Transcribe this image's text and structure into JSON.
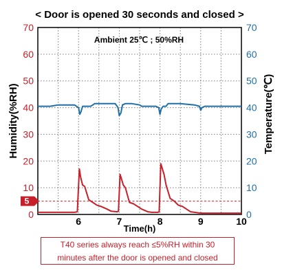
{
  "chart_data": {
    "type": "line",
    "title": "< Door is opened 30 seconds and closed >",
    "annotation": "Ambient 25℃ ; 50%RH",
    "xlabel": "Time(h)",
    "ylabel_left": "Humidity(%RH)",
    "ylabel_right": "Temperature(℃)",
    "xlim": [
      5,
      10
    ],
    "ylim_left": [
      0,
      70
    ],
    "ylim_right": [
      0,
      70
    ],
    "x_ticks": [
      6,
      7,
      8,
      9,
      10
    ],
    "y_ticks_left": [
      0,
      10,
      20,
      30,
      40,
      50,
      60,
      70
    ],
    "y_ticks_right": [
      0,
      10,
      20,
      30,
      40,
      50,
      60,
      70
    ],
    "grid": true,
    "threshold": {
      "value": 5,
      "label": "5",
      "color": "#c8202a"
    },
    "series": [
      {
        "color": "#1f6fa8",
        "axis": "right",
        "x": [
          5.0,
          5.3,
          5.5,
          5.9,
          6.0,
          6.03,
          6.06,
          6.1,
          6.15,
          6.3,
          6.4,
          6.9,
          6.97,
          7.0,
          7.04,
          7.08,
          7.15,
          7.3,
          7.5,
          7.55,
          7.9,
          7.97,
          8.0,
          8.03,
          8.08,
          8.15,
          8.2,
          8.5,
          8.85,
          8.97,
          9.0,
          9.03,
          9.1,
          9.4,
          10.0
        ],
        "values": [
          40.5,
          40.5,
          41.0,
          41.0,
          40.0,
          37.5,
          38.5,
          40.5,
          40.5,
          40.5,
          41.5,
          41.5,
          40.0,
          37.0,
          38.0,
          41.0,
          41.5,
          41.5,
          41.0,
          40.5,
          40.5,
          40.0,
          37.5,
          39.5,
          40.5,
          40.5,
          41.5,
          41.5,
          41.0,
          40.5,
          39.0,
          40.0,
          40.5,
          40.5,
          40.5
        ]
      },
      {
        "color": "#c8202a",
        "axis": "left",
        "x": [
          5.0,
          5.9,
          5.97,
          6.02,
          6.05,
          6.1,
          6.15,
          6.25,
          6.35,
          6.45,
          6.55,
          6.7,
          6.8,
          6.95,
          6.98,
          7.02,
          7.05,
          7.1,
          7.15,
          7.25,
          7.35,
          7.45,
          7.55,
          7.7,
          7.8,
          7.95,
          7.98,
          8.02,
          8.05,
          8.1,
          8.15,
          8.25,
          8.35,
          8.45,
          8.55,
          8.65,
          8.75,
          8.85,
          8.95,
          9.05,
          9.2,
          10.0
        ],
        "values": [
          0.8,
          0.8,
          1.0,
          17.0,
          14.0,
          11.0,
          10.5,
          5.5,
          4.5,
          3.5,
          3.0,
          2.0,
          1.2,
          1.0,
          1.2,
          15.0,
          13.5,
          11.0,
          10.0,
          4.5,
          4.0,
          3.0,
          2.0,
          1.0,
          0.8,
          0.8,
          1.0,
          19.0,
          17.5,
          15.0,
          11.0,
          6.0,
          5.0,
          3.5,
          3.0,
          2.0,
          1.0,
          0.8,
          0.6,
          0.5,
          0.5,
          0.5
        ]
      }
    ]
  },
  "caption": {
    "line1": "T40 series always reach ≤5%RH within 30",
    "line2": "minutes after the door is opened and closed"
  }
}
